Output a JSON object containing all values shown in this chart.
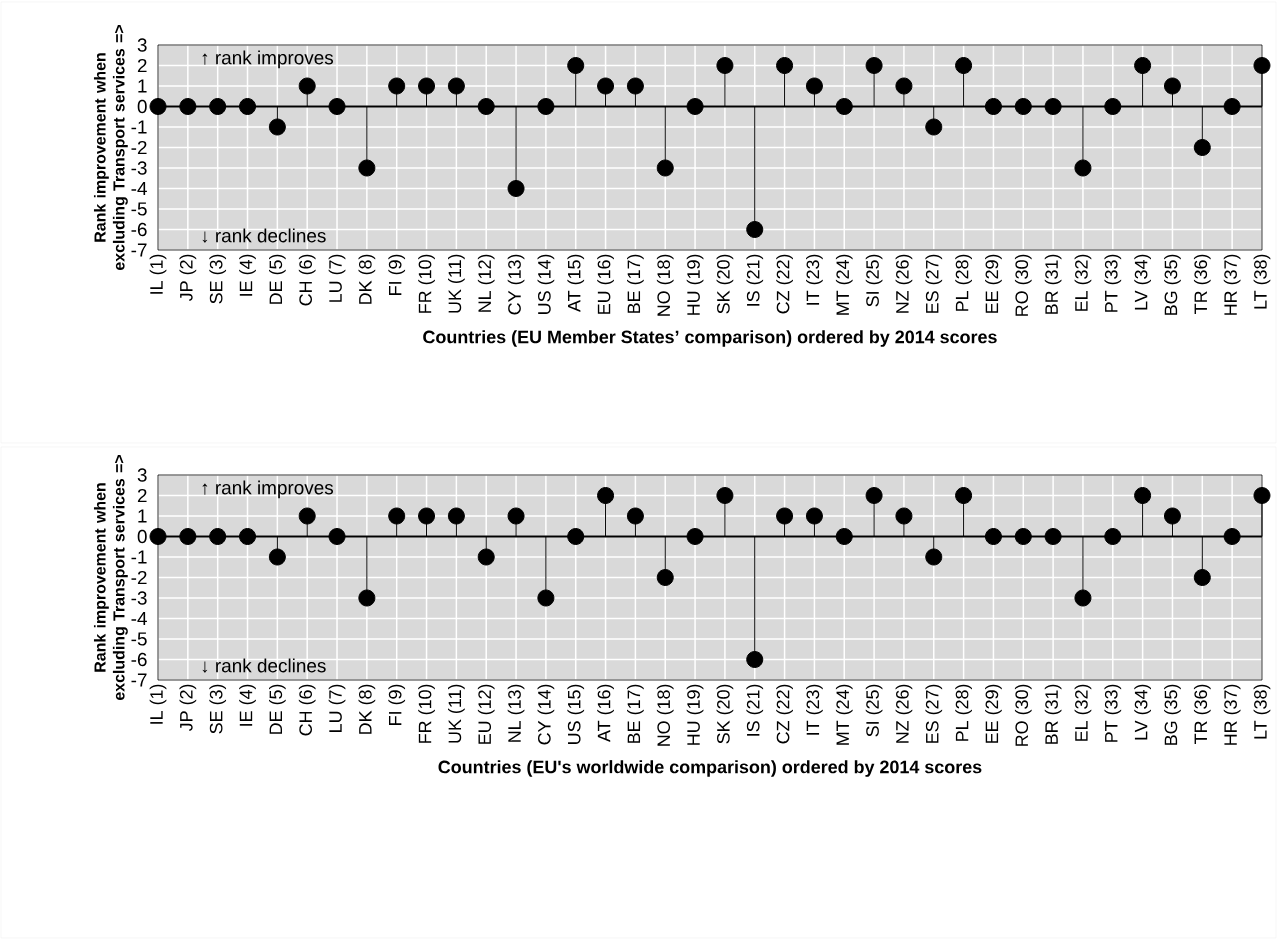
{
  "chart_data": [
    {
      "type": "lollipop",
      "xlabel": "Countries (EU Member States’ comparison) ordered by 2014 scores",
      "ylabel": "Rank improvement when excluding Transport services =>",
      "categories": [
        "IL (1)",
        "JP (2)",
        "SE (3)",
        "IE (4)",
        "DE (5)",
        "CH (6)",
        "LU (7)",
        "DK (8)",
        "FI (9)",
        "FR (10)",
        "UK (11)",
        "NL (12)",
        "CY (13)",
        "US (14)",
        "AT (15)",
        "EU (16)",
        "BE (17)",
        "NO (18)",
        "HU (19)",
        "SK (20)",
        "IS (21)",
        "CZ (22)",
        "IT (23)",
        "MT (24)",
        "SI (25)",
        "NZ (26)",
        "ES (27)",
        "PL (28)",
        "EE (29)",
        "RO (30)",
        "BR (31)",
        "EL (32)",
        "PT (33)",
        "LV (34)",
        "BG (35)",
        "TR (36)",
        "HR (37)",
        "LT (38)"
      ],
      "series": [
        {
          "color": "#000000",
          "values": [
            0,
            0,
            0,
            0,
            -1,
            1,
            0,
            -3,
            1,
            1,
            1,
            0,
            -4,
            0,
            2,
            1,
            1,
            -3,
            0,
            2,
            -6,
            2,
            1,
            0,
            2,
            1,
            -1,
            2,
            0,
            0,
            0,
            -3,
            0,
            2,
            1,
            -2,
            0,
            2
          ]
        }
      ],
      "ylim": [
        -7,
        3
      ],
      "yticks": [
        -7,
        -6,
        -5,
        -4,
        -3,
        -2,
        -1,
        0,
        1,
        2,
        3
      ],
      "grid": true,
      "marker": "circle",
      "annotations": [
        "↑ rank improves",
        "↓ rank declines"
      ]
    },
    {
      "type": "lollipop",
      "xlabel": "Countries (EU's worldwide comparison) ordered by 2014 scores",
      "ylabel": "Rank improvement when excluding Transport services =>",
      "categories": [
        "IL (1)",
        "JP (2)",
        "SE (3)",
        "IE (4)",
        "DE (5)",
        "CH (6)",
        "LU (7)",
        "DK (8)",
        "FI (9)",
        "FR (10)",
        "UK (11)",
        "EU (12)",
        "NL (13)",
        "CY (14)",
        "US (15)",
        "AT (16)",
        "BE (17)",
        "NO (18)",
        "HU (19)",
        "SK (20)",
        "IS (21)",
        "CZ (22)",
        "IT (23)",
        "MT (24)",
        "SI (25)",
        "NZ (26)",
        "ES (27)",
        "PL (28)",
        "EE (29)",
        "RO (30)",
        "BR (31)",
        "EL (32)",
        "PT (33)",
        "LV (34)",
        "BG (35)",
        "TR (36)",
        "HR (37)",
        "LT (38)"
      ],
      "series": [
        {
          "color": "#000000",
          "values": [
            0,
            0,
            0,
            0,
            -1,
            1,
            0,
            -3,
            1,
            1,
            1,
            -1,
            1,
            -3,
            0,
            2,
            1,
            -2,
            0,
            2,
            -6,
            1,
            1,
            0,
            2,
            1,
            -1,
            2,
            0,
            0,
            0,
            -3,
            0,
            2,
            1,
            -2,
            0,
            2
          ]
        }
      ],
      "ylim": [
        -7,
        3
      ],
      "yticks": [
        -7,
        -6,
        -5,
        -4,
        -3,
        -2,
        -1,
        0,
        1,
        2,
        3
      ],
      "grid": true,
      "marker": "circle",
      "annotations": [
        "↑ rank improves",
        "↓ rank declines"
      ]
    }
  ]
}
